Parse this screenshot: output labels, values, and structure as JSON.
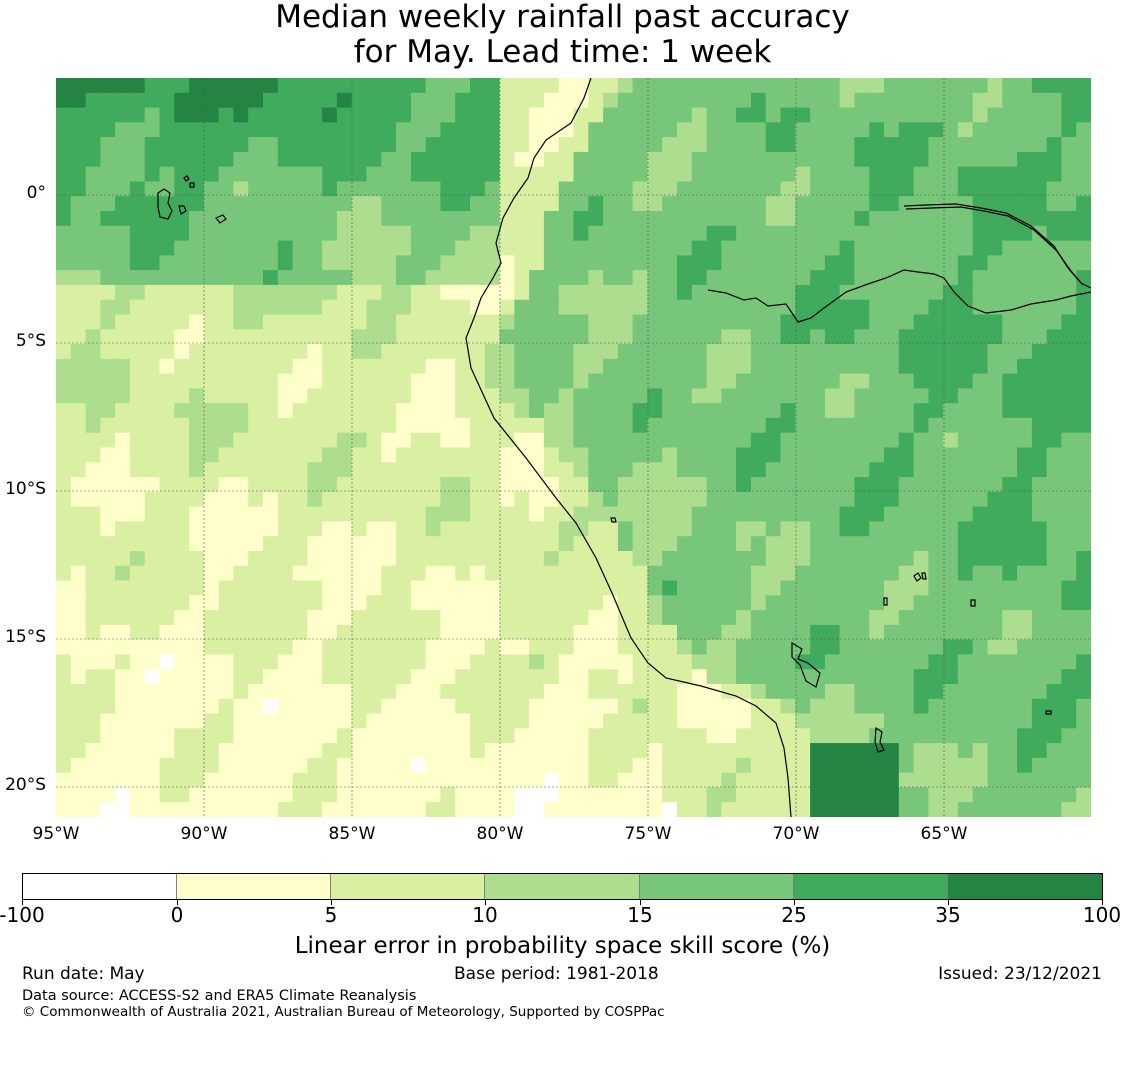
{
  "title": {
    "line1": "Median weekly rainfall past accuracy",
    "line2": "for May. Lead time: 1 week"
  },
  "map": {
    "lon_range": [
      -95,
      -60
    ],
    "lat_range": [
      -21,
      4
    ],
    "lat_labels": [
      "0°",
      "5°S",
      "10°S",
      "15°S",
      "20°S"
    ],
    "lon_labels": [
      "95°W",
      "90°W",
      "85°W",
      "80°W",
      "75°W",
      "70°W",
      "65°W"
    ],
    "gridlines": true
  },
  "colorbar": {
    "bounds": [
      "-100",
      "0",
      "5",
      "10",
      "15",
      "25",
      "35",
      "100"
    ],
    "colors": [
      "#ffffff",
      "#ffffcc",
      "#d9f0a3",
      "#addd8e",
      "#78c679",
      "#41ab5d",
      "#238443"
    ],
    "title": "Linear error in probability space skill score (%)"
  },
  "footer": {
    "run_date": "Run date: May",
    "base_period": "Base period: 1981-2018",
    "issued": "Issued: 23/12/2021",
    "data_source": "Data source: ACCESS-S2 and ERA5 Climate Reanalysis",
    "copyright": "© Commonwealth of Australia 2021, Australian Bureau of Meteorology, Supported by COSPPac"
  }
}
